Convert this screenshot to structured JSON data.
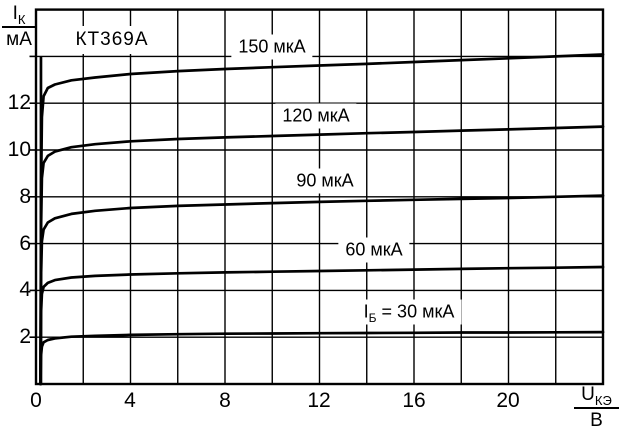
{
  "device_title": "КТ369А",
  "colors": {
    "line": "#000000",
    "background": "#ffffff"
  },
  "axis_labels": {
    "y": {
      "num": "I",
      "sub": "К",
      "den": "мА"
    },
    "x": {
      "num": "U",
      "sub": "КЭ",
      "den": "В"
    }
  },
  "chart_data": {
    "type": "line",
    "title": "КТ369А",
    "xlabel": "UКЭ, В",
    "ylabel": "IК, мА",
    "xlim": [
      0,
      24
    ],
    "ylim": [
      0,
      16
    ],
    "grid": true,
    "x_ticks": [
      0,
      4,
      8,
      12,
      16,
      20
    ],
    "y_ticks": [
      2,
      4,
      6,
      8,
      10,
      12
    ],
    "x_gridlines_v": [
      2,
      4,
      6,
      8,
      10,
      12,
      14,
      16,
      18,
      20,
      22
    ],
    "y_gridlines_ma": [
      2,
      4,
      6,
      8,
      10,
      12,
      14
    ],
    "rise_line": {
      "x_v": 0.21,
      "from_ma": 0,
      "to_ma": 13.95
    },
    "curve_labels": [
      {
        "prefix": "",
        "sub": "",
        "text": "150 мкА"
      },
      {
        "prefix": "",
        "sub": "",
        "text": "120 мкА"
      },
      {
        "prefix": "",
        "sub": "",
        "text": "90 мкА"
      },
      {
        "prefix": "",
        "sub": "",
        "text": "60 мкА"
      },
      {
        "prefix": "I",
        "sub": "Б",
        "text": " = 30 мкА"
      }
    ],
    "series": [
      {
        "name": "IБ = 150 мкА",
        "base_current_uA": 150,
        "points": [
          [
            0.19,
            0
          ],
          [
            0.21,
            8
          ],
          [
            0.25,
            11.4
          ],
          [
            0.32,
            12.3
          ],
          [
            0.5,
            12.65
          ],
          [
            0.8,
            12.8
          ],
          [
            1.5,
            12.98
          ],
          [
            2.5,
            13.1
          ],
          [
            4,
            13.25
          ],
          [
            6,
            13.37
          ],
          [
            8,
            13.46
          ],
          [
            10,
            13.54
          ],
          [
            12,
            13.61
          ],
          [
            14,
            13.68
          ],
          [
            16,
            13.76
          ],
          [
            18,
            13.84
          ],
          [
            20,
            13.92
          ],
          [
            22,
            14.0
          ],
          [
            24,
            14.08
          ]
        ]
      },
      {
        "name": "IБ = 120 мкА",
        "base_current_uA": 120,
        "points": [
          [
            0.19,
            0
          ],
          [
            0.21,
            6.5
          ],
          [
            0.25,
            8.8
          ],
          [
            0.32,
            9.45
          ],
          [
            0.5,
            9.75
          ],
          [
            0.8,
            9.93
          ],
          [
            1.5,
            10.12
          ],
          [
            2.5,
            10.25
          ],
          [
            4,
            10.37
          ],
          [
            6,
            10.47
          ],
          [
            8,
            10.54
          ],
          [
            10,
            10.6
          ],
          [
            12,
            10.66
          ],
          [
            14,
            10.72
          ],
          [
            16,
            10.77
          ],
          [
            18,
            10.83
          ],
          [
            20,
            10.88
          ],
          [
            22,
            10.94
          ],
          [
            24,
            11.0
          ]
        ]
      },
      {
        "name": "IБ = 90 мкА",
        "base_current_uA": 90,
        "points": [
          [
            0.19,
            0
          ],
          [
            0.21,
            4.5
          ],
          [
            0.25,
            6.1
          ],
          [
            0.32,
            6.6
          ],
          [
            0.5,
            6.9
          ],
          [
            0.8,
            7.08
          ],
          [
            1.5,
            7.27
          ],
          [
            2.5,
            7.4
          ],
          [
            4,
            7.52
          ],
          [
            6,
            7.61
          ],
          [
            8,
            7.67
          ],
          [
            10,
            7.73
          ],
          [
            12,
            7.78
          ],
          [
            14,
            7.83
          ],
          [
            16,
            7.87
          ],
          [
            18,
            7.91
          ],
          [
            20,
            7.95
          ],
          [
            22,
            8.0
          ],
          [
            24,
            8.05
          ]
        ]
      },
      {
        "name": "IБ = 60 мкА",
        "base_current_uA": 60,
        "points": [
          [
            0.19,
            0
          ],
          [
            0.21,
            3.0
          ],
          [
            0.25,
            3.85
          ],
          [
            0.32,
            4.15
          ],
          [
            0.5,
            4.32
          ],
          [
            0.8,
            4.44
          ],
          [
            1.5,
            4.55
          ],
          [
            2.5,
            4.62
          ],
          [
            4,
            4.68
          ],
          [
            6,
            4.73
          ],
          [
            8,
            4.77
          ],
          [
            10,
            4.8
          ],
          [
            12,
            4.83
          ],
          [
            14,
            4.86
          ],
          [
            16,
            4.89
          ],
          [
            18,
            4.92
          ],
          [
            20,
            4.95
          ],
          [
            22,
            4.97
          ],
          [
            24,
            5.0
          ]
        ]
      },
      {
        "name": "IБ = 30 мкА",
        "base_current_uA": 30,
        "points": [
          [
            0.19,
            0
          ],
          [
            0.21,
            1.2
          ],
          [
            0.25,
            1.6
          ],
          [
            0.32,
            1.78
          ],
          [
            0.5,
            1.88
          ],
          [
            0.8,
            1.95
          ],
          [
            1.5,
            2.02
          ],
          [
            2.5,
            2.06
          ],
          [
            4,
            2.1
          ],
          [
            6,
            2.13
          ],
          [
            8,
            2.15
          ],
          [
            10,
            2.16
          ],
          [
            12,
            2.17
          ],
          [
            14,
            2.18
          ],
          [
            16,
            2.19
          ],
          [
            18,
            2.2
          ],
          [
            20,
            2.2
          ],
          [
            22,
            2.21
          ],
          [
            24,
            2.22
          ]
        ]
      }
    ]
  }
}
